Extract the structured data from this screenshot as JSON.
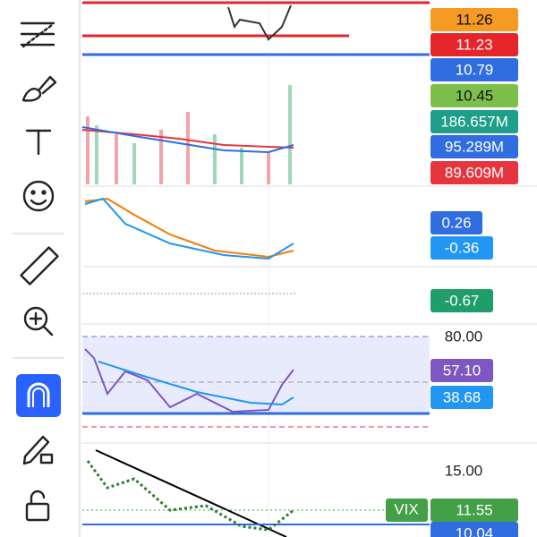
{
  "price_labels": [
    {
      "text": "11.26",
      "color": "#f59a23",
      "text_color": "#111111"
    },
    {
      "text": "11.23",
      "color": "#e5252a",
      "text_color": "#ffffff"
    },
    {
      "text": "10.79",
      "color": "#2f6de1",
      "text_color": "#ffffff"
    },
    {
      "text": "10.45",
      "color": "#7cc04b",
      "text_color": "#111111"
    },
    {
      "text": "186.657M",
      "color": "#1f9e89",
      "text_color": "#ffffff"
    },
    {
      "text": "95.289M",
      "color": "#2f6de1",
      "text_color": "#ffffff"
    },
    {
      "text": "89.609M",
      "color": "#e5353f",
      "text_color": "#ffffff"
    },
    {
      "text": "0.26",
      "color": "#2f6de1",
      "text_color": "#ffffff"
    },
    {
      "text": "-0.36",
      "color": "#2196f3",
      "text_color": "#ffffff"
    },
    {
      "text": "-0.67",
      "color": "#1f9e6a",
      "text_color": "#ffffff"
    },
    {
      "text": "57.10",
      "color": "#7e57c2",
      "text_color": "#ffffff"
    },
    {
      "text": "38.68",
      "color": "#2196f3",
      "text_color": "#ffffff"
    },
    {
      "text": "11.55",
      "color": "#43a047",
      "text_color": "#ffffff"
    },
    {
      "text": "10.04",
      "color": "#2f6de1",
      "text_color": "#ffffff"
    }
  ],
  "scale_labels": [
    "80.00",
    "15.00"
  ],
  "symbol_tag": "VIX"
}
